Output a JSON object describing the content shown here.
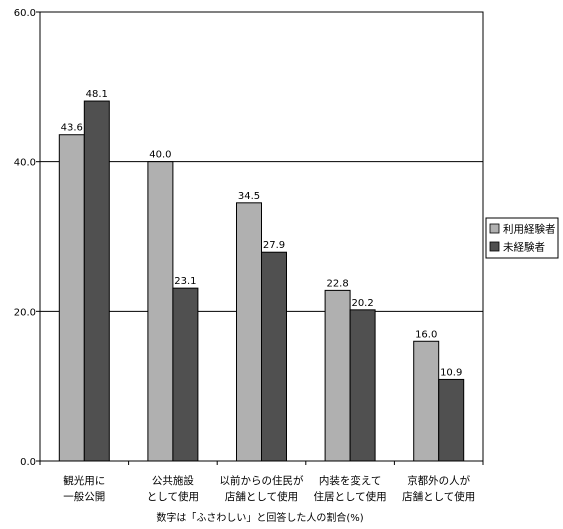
{
  "chart_data": {
    "type": "bar",
    "categories": [
      [
        "観光用に",
        "一般公開"
      ],
      [
        "公共施設",
        "として使用"
      ],
      [
        "以前からの住民が",
        "店舗として使用"
      ],
      [
        "内装を変えて",
        "住居として使用"
      ],
      [
        "京都外の人が",
        "店舗として使用"
      ]
    ],
    "series": [
      {
        "name": "利用経験者",
        "values": [
          43.6,
          40.0,
          34.5,
          22.8,
          16.0
        ],
        "color": "#b0b0b0"
      },
      {
        "name": "未経験者",
        "values": [
          48.1,
          23.1,
          27.9,
          20.2,
          10.9
        ],
        "color": "#505050"
      }
    ],
    "ylim": [
      0,
      60
    ],
    "yticks": [
      "0.0",
      "20.0",
      "40.0",
      "60.0"
    ],
    "ytick_values": [
      0,
      20,
      40,
      60
    ],
    "gridlines": [
      20,
      40
    ],
    "legend_position": "right",
    "footnote": "数字は「ふさわしい」と回答した人の割合(%)"
  }
}
